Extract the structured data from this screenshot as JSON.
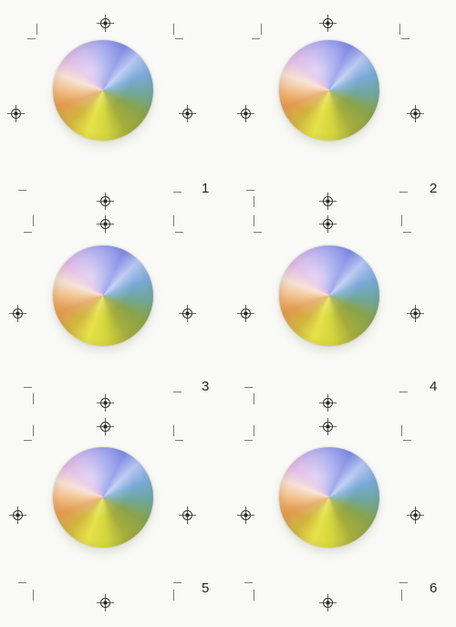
{
  "tiles": [
    {
      "number": "1"
    },
    {
      "number": "2"
    },
    {
      "number": "3"
    },
    {
      "number": "4"
    },
    {
      "number": "5"
    },
    {
      "number": "6"
    }
  ],
  "marks": {
    "registration": "registration-target-icon",
    "crop": "crop-mark-icon"
  },
  "colors": {
    "background": "#f9f9f7",
    "ink": "#222222"
  }
}
